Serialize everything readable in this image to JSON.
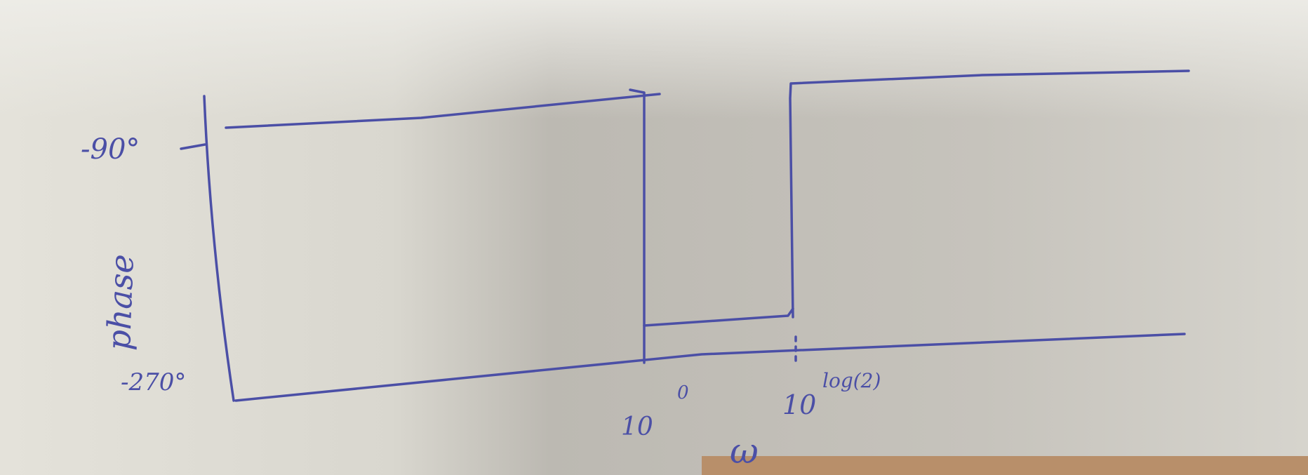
{
  "sketch": {
    "y_axis_label": "phase",
    "y_ticks": [
      "-90°",
      "-270°"
    ],
    "x_ticks": [
      {
        "base": "10",
        "exponent": "0"
      },
      {
        "base": "10",
        "exponent": "log(2)"
      }
    ],
    "x_axis_label": "ω"
  }
}
